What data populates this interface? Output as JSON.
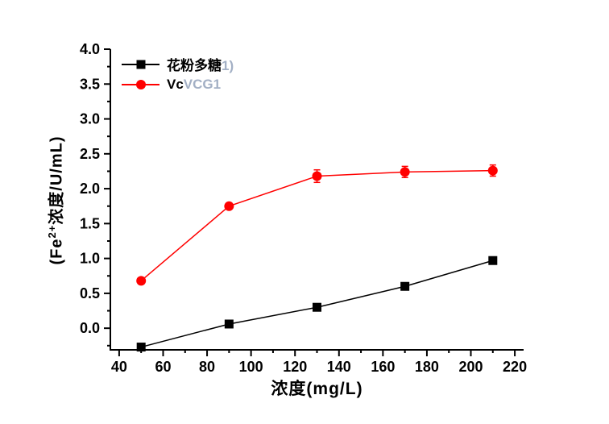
{
  "chart_data": {
    "type": "line",
    "title": "",
    "xlabel": "浓度(mg/L)",
    "ylabel": {
      "pre": "(Fe",
      "sup": "2+",
      "post": "浓度/U/mL)"
    },
    "grid": false,
    "legend_position": "top-left",
    "background": "#ffffff",
    "axis_color": "#000000",
    "ghost_text_color": "#9aa8bf",
    "x_axis": {
      "range": [
        36,
        224
      ],
      "major_ticks": [
        40,
        60,
        80,
        100,
        120,
        140,
        160,
        180,
        200,
        220
      ],
      "tick_labels": [
        "40",
        "60",
        "80",
        "100",
        "120",
        "140",
        "160",
        "180",
        "200",
        "220"
      ],
      "minor_ticks": [
        50,
        70,
        90,
        110,
        130,
        150,
        170,
        190,
        210
      ]
    },
    "y_axis": {
      "range": [
        -0.31,
        4.0
      ],
      "major_ticks": [
        0.0,
        0.5,
        1.0,
        1.5,
        2.0,
        2.5,
        3.0,
        3.5,
        4.0
      ],
      "tick_labels": [
        "0.0",
        "0.5",
        "1.0",
        "1.5",
        "2.0",
        "2.5",
        "3.0",
        "3.5",
        "4.0"
      ],
      "minor_ticks": [
        -0.25,
        0.25,
        0.75,
        1.25,
        1.75,
        2.25,
        2.75,
        3.25,
        3.75
      ]
    },
    "x": [
      50,
      90,
      130,
      170,
      210
    ],
    "series": [
      {
        "name": "花粉多糖",
        "ghost_suffix": "1)",
        "color": "#000000",
        "marker": "square",
        "values": [
          -0.27,
          0.06,
          0.3,
          0.6,
          0.97
        ],
        "yerr": [
          0,
          0,
          0,
          0,
          0
        ]
      },
      {
        "name": "Vc",
        "ghost_suffix": "VCG1",
        "color": "#ff0000",
        "marker": "circle",
        "values": [
          0.68,
          1.75,
          2.18,
          2.24,
          2.26
        ],
        "yerr": [
          0,
          0,
          0.09,
          0.08,
          0.08
        ]
      }
    ]
  }
}
